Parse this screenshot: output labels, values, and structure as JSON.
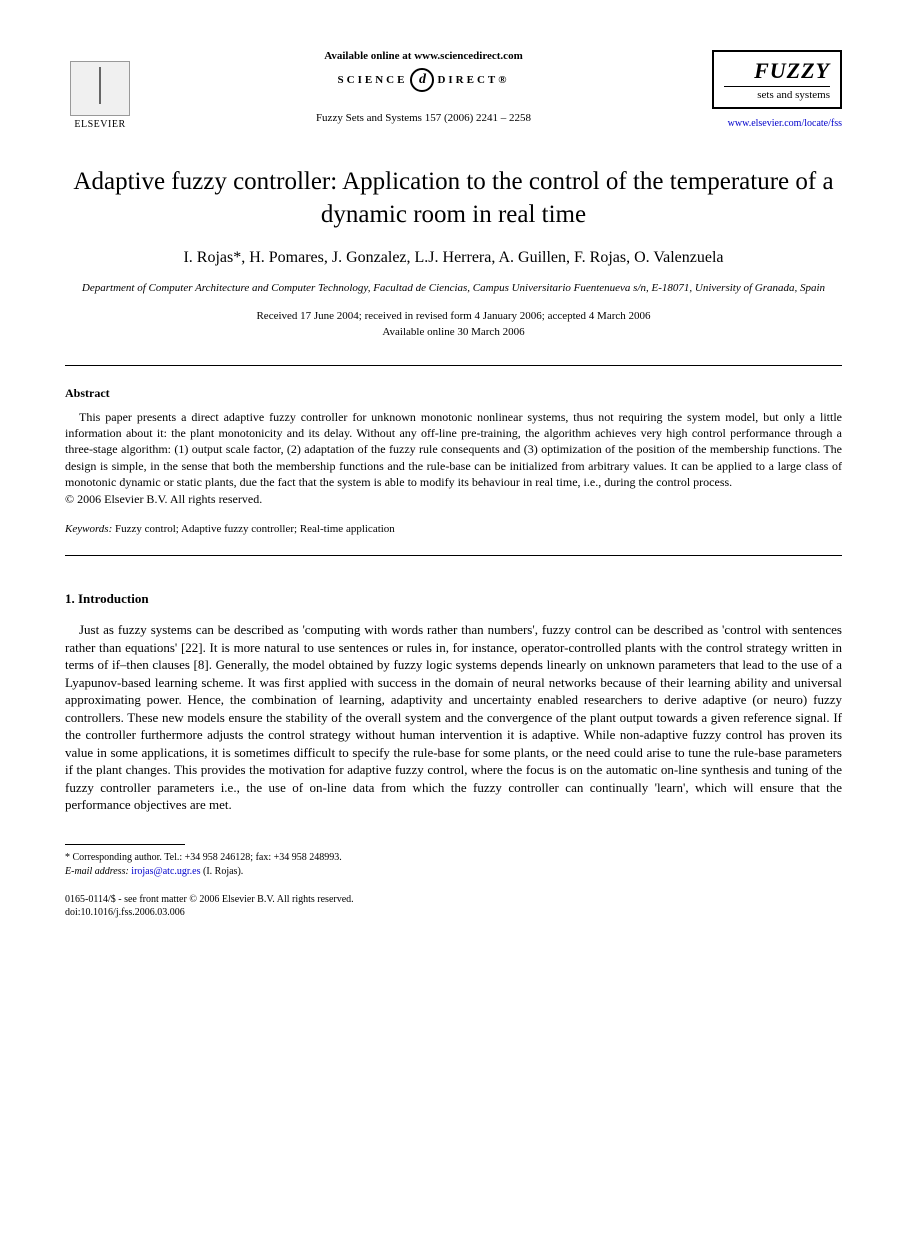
{
  "header": {
    "elsevier_label": "ELSEVIER",
    "available_online": "Available online at www.sciencedirect.com",
    "science_left": "SCIENCE",
    "science_at": "d",
    "science_right": "DIRECT®",
    "citation": "Fuzzy Sets and Systems 157 (2006) 2241 – 2258",
    "fuzzy_title": "FUZZY",
    "fuzzy_sub": "sets and systems",
    "journal_url": "www.elsevier.com/locate/fss"
  },
  "title": "Adaptive fuzzy controller: Application to the control of the temperature of a dynamic room in real time",
  "authors": "I. Rojas*, H. Pomares, J. Gonzalez, L.J. Herrera, A. Guillen, F. Rojas, O. Valenzuela",
  "affiliation": "Department of Computer Architecture and Computer Technology, Facultad de Ciencias, Campus Universitario Fuentenueva s/n, E-18071, University of Granada, Spain",
  "dates": {
    "line1": "Received 17 June 2004; received in revised form 4 January 2006; accepted 4 March 2006",
    "line2": "Available online 30 March 2006"
  },
  "abstract": {
    "heading": "Abstract",
    "text": "This paper presents a direct adaptive fuzzy controller for unknown monotonic nonlinear systems, thus not requiring the system model, but only a little information about it: the plant monotonicity and its delay. Without any off-line pre-training, the algorithm achieves very high control performance through a three-stage algorithm: (1) output scale factor, (2) adaptation of the fuzzy rule consequents and (3) optimization of the position of the membership functions. The design is simple, in the sense that both the membership functions and the rule-base can be initialized from arbitrary values. It can be applied to a large class of monotonic dynamic or static plants, due the fact that the system is able to modify its behaviour in real time, i.e., during the control process.",
    "copyright": "© 2006 Elsevier B.V. All rights reserved."
  },
  "keywords": {
    "label": "Keywords:",
    "text": " Fuzzy control; Adaptive fuzzy controller; Real-time application"
  },
  "section": {
    "heading": "1.  Introduction",
    "body": "Just as fuzzy systems can be described as 'computing with words rather than numbers', fuzzy control can be described as 'control with sentences rather than equations' [22]. It is more natural to use sentences or rules in, for instance, operator-controlled plants with the control strategy written in terms of if–then clauses [8]. Generally, the model obtained by fuzzy logic systems depends linearly on unknown parameters that lead to the use of a Lyapunov-based learning scheme. It was first applied with success in the domain of neural networks because of their learning ability and universal approximating power. Hence, the combination of learning, adaptivity and uncertainty enabled researchers to derive adaptive (or neuro) fuzzy controllers. These new models ensure the stability of the overall system and the convergence of the plant output towards a given reference signal. If the controller furthermore adjusts the control strategy without human intervention it is adaptive. While non-adaptive fuzzy control has proven its value in some applications, it is sometimes difficult to specify the rule-base for some plants, or the need could arise to tune the rule-base parameters if the plant changes. This provides the motivation for adaptive fuzzy control, where the focus is on the automatic on-line synthesis and tuning of the fuzzy controller parameters i.e., the use of on-line data from which the fuzzy controller can continually 'learn', which will ensure that the performance objectives are met."
  },
  "footnote": {
    "corresponding": "* Corresponding author. Tel.: +34 958 246128; fax: +34 958 248993.",
    "email_label": "E-mail address:",
    "email": "irojas@atc.ugr.es",
    "email_suffix": " (I. Rojas)."
  },
  "footer": {
    "line1": "0165-0114/$ - see front matter © 2006 Elsevier B.V. All rights reserved.",
    "line2": "doi:10.1016/j.fss.2006.03.006"
  }
}
